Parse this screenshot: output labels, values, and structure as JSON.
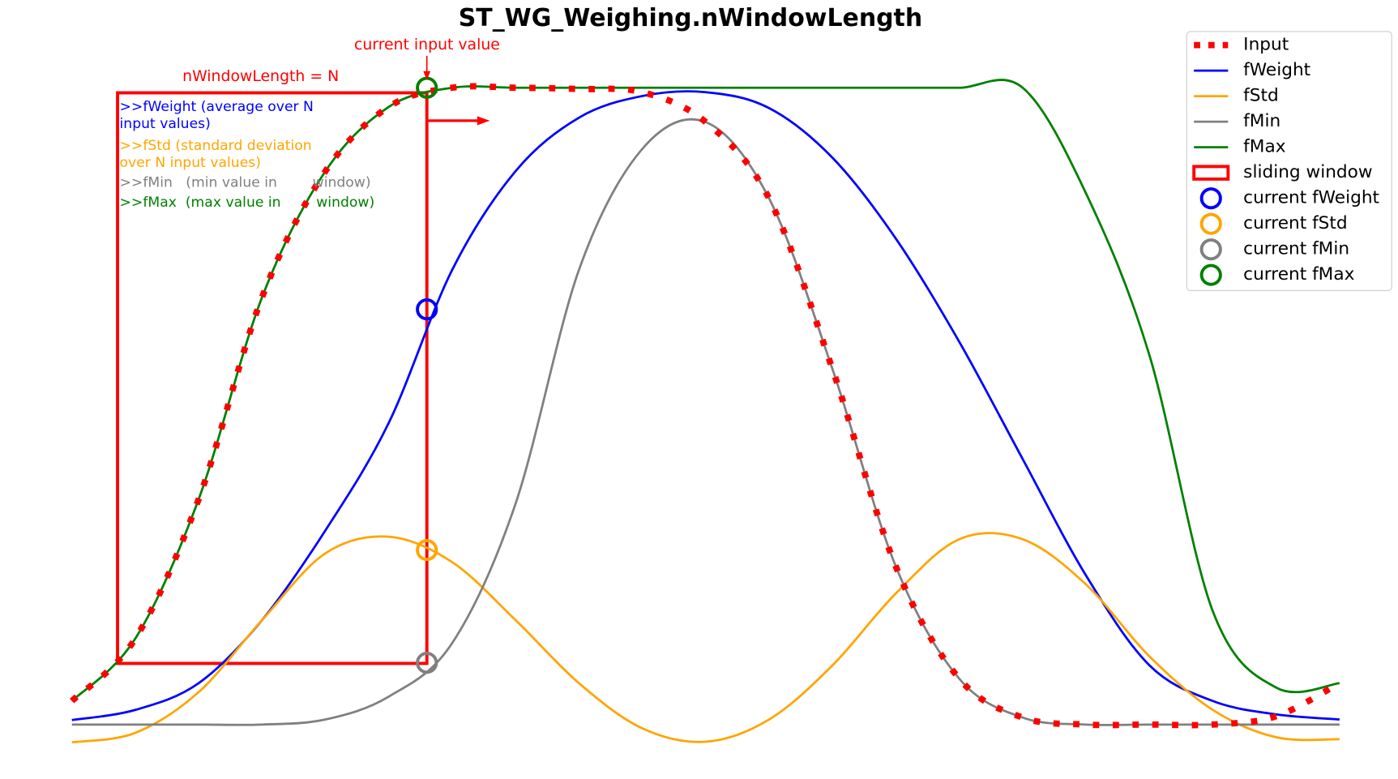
{
  "chart_data": {
    "type": "line",
    "title": "ST_WG_Weighing.nWindowLength",
    "x": [
      0,
      5,
      10,
      15,
      20,
      25,
      30,
      35,
      40,
      45,
      50,
      55,
      60,
      65,
      70,
      75,
      80,
      85,
      90,
      95,
      100
    ],
    "xlim": [
      0,
      100
    ],
    "ylim": [
      -0.05,
      1.05
    ],
    "legend": "upper right",
    "series": [
      {
        "name": "Input",
        "color": "red",
        "linestyle": "dotted",
        "values": [
          0.037,
          0.135,
          0.354,
          0.671,
          0.869,
          0.97,
          1.0,
          1.0,
          0.998,
          0.993,
          0.946,
          0.826,
          0.558,
          0.248,
          0.072,
          0.011,
          0,
          0,
          0,
          0.013,
          0.065
        ]
      },
      {
        "name": "fWeight",
        "color": "blue",
        "linestyle": "solid",
        "values": [
          0.007,
          0.023,
          0.065,
          0.164,
          0.305,
          0.474,
          0.714,
          0.869,
          0.953,
          0.987,
          0.993,
          0.968,
          0.89,
          0.763,
          0.601,
          0.417,
          0.234,
          0.093,
          0.037,
          0.016,
          0.008
        ]
      },
      {
        "name": "fStd",
        "color": "orange",
        "linestyle": "solid",
        "values": [
          -0.028,
          -0.013,
          0.051,
          0.164,
          0.269,
          0.295,
          0.255,
          0.164,
          0.065,
          -0.006,
          -0.027,
          0.008,
          0.093,
          0.206,
          0.291,
          0.291,
          0.22,
          0.107,
          0.023,
          -0.02,
          -0.023
        ]
      },
      {
        "name": "fMin",
        "color": "gray",
        "linestyle": "solid",
        "values": [
          0,
          0,
          0,
          0,
          0.008,
          0.044,
          0.128,
          0.347,
          0.714,
          0.904,
          0.946,
          0.826,
          0.558,
          0.248,
          0.072,
          0.011,
          0,
          0,
          0,
          0,
          0
        ]
      },
      {
        "name": "fMax",
        "color": "green",
        "linestyle": "solid",
        "values": [
          0.037,
          0.135,
          0.354,
          0.671,
          0.869,
          0.97,
          1.0,
          1.0,
          1.0,
          1.0,
          1.0,
          1.0,
          1.0,
          1.0,
          1.0,
          1.0,
          0.834,
          0.58,
          0.178,
          0.058,
          0.065
        ]
      }
    ],
    "window": {
      "name": "sliding window",
      "color": "red",
      "x": [
        3.6,
        28
      ],
      "y": [
        0.096,
        0.992
      ]
    },
    "markers": {
      "x": 28,
      "items": [
        {
          "name": "current fWeight",
          "color": "blue",
          "value": 0.652
        },
        {
          "name": "current fStd",
          "color": "orange",
          "value": 0.274
        },
        {
          "name": "current fMin",
          "color": "gray",
          "value": 0.097
        },
        {
          "name": "current fMax",
          "color": "green",
          "value": 1.0
        }
      ]
    },
    "annotations": [
      {
        "text": "current input value",
        "color": "red"
      },
      {
        "text": "nWindowLength = N",
        "color": "red"
      },
      {
        "text": ">>fWeight (average over N",
        "color": "blue"
      },
      {
        "text": "input values)",
        "color": "blue"
      },
      {
        "text": ">>fStd (standard deviation",
        "color": "orange"
      },
      {
        "text": "over N input values)",
        "color": "orange"
      },
      {
        "text": ">>fMin   (min value in        window)",
        "color": "gray"
      },
      {
        "text": ">>fMax  (max value in        window)",
        "color": "green"
      }
    ]
  }
}
